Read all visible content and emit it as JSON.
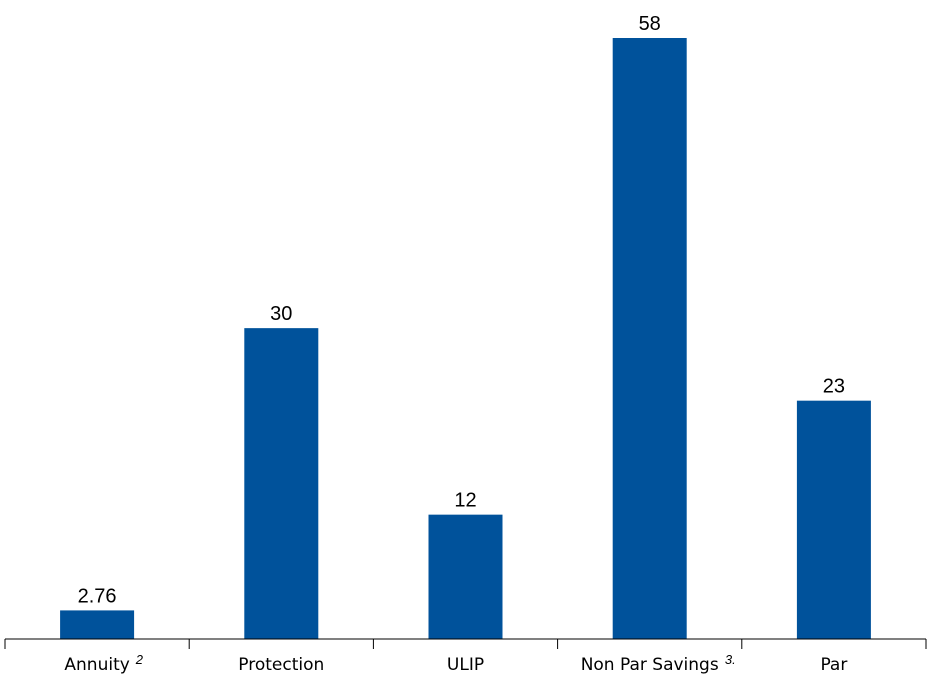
{
  "chart_data": {
    "type": "bar",
    "title": "",
    "xlabel": "",
    "ylabel": "",
    "categories": [
      "Annuity",
      "Protection",
      "ULIP",
      "Non Par Savings",
      "Par"
    ],
    "category_footnotes": [
      "2",
      "",
      "",
      "3.",
      ""
    ],
    "values": [
      2.76,
      30,
      12,
      58,
      23
    ],
    "value_labels": [
      "2.76",
      "30",
      "12",
      "58",
      "23"
    ],
    "ylim": [
      0,
      58
    ],
    "grid": false,
    "legend": "none",
    "bar_color": "#00529b"
  }
}
